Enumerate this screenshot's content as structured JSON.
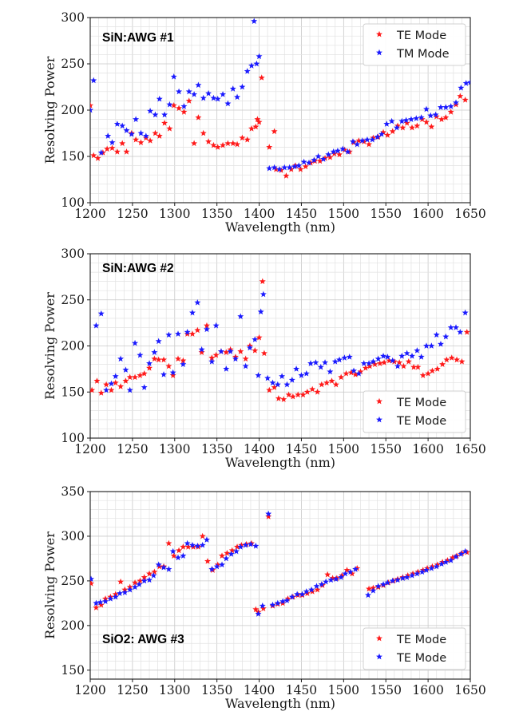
{
  "colors": {
    "red": "#ff1a1a",
    "blue": "#1a1aff"
  },
  "chart_data": [
    {
      "type": "scatter",
      "title": "SiN:AWG #1",
      "xlabel": "Wavelength (nm)",
      "ylabel": "Resolving Power",
      "xlim": [
        1200,
        1650
      ],
      "ylim": [
        100,
        300
      ],
      "xticks": [
        "1200",
        "1250",
        "1300",
        "1350",
        "1400",
        "1450",
        "1500",
        "1550",
        "1600",
        "1650"
      ],
      "yticks": [
        "100",
        "150",
        "200",
        "250",
        "300"
      ],
      "legend_position": "top-right",
      "grid": true,
      "series": [
        {
          "name": "TE Mode",
          "color": "red",
          "x": [
            1200,
            1204,
            1209,
            1215,
            1220,
            1226,
            1232,
            1238,
            1243,
            1249,
            1254,
            1260,
            1266,
            1271,
            1277,
            1282,
            1288,
            1294,
            1299,
            1305,
            1311,
            1317,
            1323,
            1328,
            1334,
            1340,
            1346,
            1351,
            1357,
            1363,
            1369,
            1374,
            1380,
            1386,
            1391,
            1396,
            1398,
            1400,
            1403,
            1412,
            1418,
            1420,
            1426,
            1432,
            1438,
            1443,
            1449,
            1455,
            1461,
            1466,
            1472,
            1478,
            1484,
            1489,
            1495,
            1501,
            1507,
            1512,
            1518,
            1524,
            1530,
            1535,
            1541,
            1547,
            1552,
            1558,
            1564,
            1570,
            1575,
            1581,
            1587,
            1593,
            1598,
            1604,
            1610,
            1616,
            1621,
            1627,
            1633,
            1638,
            1644
          ],
          "y": [
            205,
            151,
            148,
            154,
            158,
            159,
            155,
            164,
            155,
            175,
            168,
            165,
            170,
            167,
            175,
            172,
            186,
            180,
            205,
            202,
            198,
            210,
            164,
            192,
            175,
            166,
            162,
            160,
            162,
            164,
            164,
            163,
            170,
            168,
            180,
            182,
            190,
            187,
            235,
            160,
            177,
            136,
            135,
            129,
            136,
            140,
            136,
            139,
            143,
            145,
            145,
            148,
            149,
            153,
            152,
            157,
            155,
            165,
            167,
            166,
            163,
            170,
            171,
            176,
            173,
            177,
            183,
            181,
            186,
            181,
            183,
            190,
            187,
            182,
            193,
            190,
            192,
            198,
            206,
            215,
            211
          ]
        },
        {
          "name": "TM Mode",
          "color": "blue",
          "x": [
            1200,
            1204,
            1213,
            1221,
            1226,
            1232,
            1238,
            1243,
            1249,
            1254,
            1260,
            1266,
            1271,
            1277,
            1282,
            1288,
            1294,
            1299,
            1305,
            1311,
            1317,
            1323,
            1328,
            1334,
            1340,
            1346,
            1351,
            1357,
            1363,
            1369,
            1374,
            1380,
            1386,
            1391,
            1394,
            1397,
            1400,
            1412,
            1418,
            1424,
            1430,
            1436,
            1442,
            1447,
            1453,
            1459,
            1465,
            1470,
            1476,
            1482,
            1488,
            1493,
            1499,
            1505,
            1511,
            1516,
            1522,
            1528,
            1534,
            1540,
            1545,
            1551,
            1557,
            1563,
            1569,
            1574,
            1580,
            1586,
            1592,
            1598,
            1603,
            1609,
            1615,
            1621,
            1627,
            1633,
            1639,
            1645,
            1650
          ],
          "y": [
            200,
            232,
            154,
            172,
            165,
            185,
            183,
            178,
            174,
            190,
            175,
            172,
            199,
            195,
            212,
            195,
            206,
            236,
            220,
            204,
            220,
            217,
            227,
            213,
            218,
            213,
            212,
            217,
            207,
            223,
            214,
            225,
            242,
            248,
            296,
            250,
            258,
            137,
            138,
            136,
            138,
            138,
            139,
            140,
            144,
            143,
            146,
            150,
            147,
            152,
            155,
            156,
            158,
            155,
            166,
            163,
            167,
            168,
            168,
            171,
            174,
            185,
            188,
            181,
            188,
            189,
            190,
            191,
            192,
            201,
            194,
            195,
            203,
            203,
            204,
            208,
            224,
            229,
            230
          ]
        }
      ],
      "legend": [
        "TE Mode",
        "TM Mode"
      ]
    },
    {
      "type": "scatter",
      "title": "SiN:AWG #2",
      "xlabel": "Wavelength (nm)",
      "ylabel": "Resolving Power",
      "xlim": [
        1200,
        1650
      ],
      "ylim": [
        100,
        300
      ],
      "xticks": [
        "1200",
        "1250",
        "1300",
        "1350",
        "1400",
        "1450",
        "1500",
        "1550",
        "1600",
        "1650"
      ],
      "yticks": [
        "100",
        "150",
        "200",
        "250",
        "300"
      ],
      "legend_position": "lower-right",
      "grid": true,
      "series": [
        {
          "name": "TE Mode",
          "color": "red",
          "x": [
            1202,
            1208,
            1213,
            1219,
            1225,
            1230,
            1236,
            1242,
            1247,
            1253,
            1259,
            1264,
            1270,
            1276,
            1281,
            1287,
            1293,
            1298,
            1304,
            1310,
            1315,
            1321,
            1327,
            1332,
            1338,
            1344,
            1349,
            1355,
            1361,
            1366,
            1372,
            1378,
            1384,
            1389,
            1395,
            1400,
            1404,
            1406,
            1412,
            1418,
            1423,
            1429,
            1435,
            1440,
            1446,
            1452,
            1457,
            1463,
            1469,
            1474,
            1480,
            1486,
            1491,
            1497,
            1503,
            1509,
            1514,
            1520,
            1526,
            1531,
            1537,
            1543,
            1548,
            1554,
            1560,
            1566,
            1571,
            1577,
            1583,
            1588,
            1594,
            1600,
            1605,
            1611,
            1617,
            1622,
            1628,
            1634,
            1640,
            1646
          ],
          "y": [
            152,
            162,
            149,
            158,
            152,
            160,
            156,
            162,
            166,
            166,
            168,
            170,
            176,
            186,
            185,
            185,
            178,
            168,
            186,
            184,
            213,
            213,
            217,
            193,
            222,
            187,
            190,
            194,
            193,
            196,
            188,
            194,
            186,
            200,
            195,
            209,
            270,
            192,
            152,
            155,
            143,
            142,
            147,
            145,
            147,
            147,
            150,
            153,
            150,
            158,
            160,
            162,
            158,
            166,
            170,
            171,
            169,
            172,
            176,
            178,
            180,
            181,
            182,
            184,
            183,
            182,
            178,
            183,
            177,
            177,
            168,
            170,
            173,
            175,
            180,
            185,
            187,
            185,
            183,
            215
          ]
        },
        {
          "name": "TE Mode",
          "color": "blue",
          "x": [
            1207,
            1213,
            1219,
            1225,
            1230,
            1236,
            1242,
            1247,
            1253,
            1259,
            1264,
            1270,
            1276,
            1281,
            1287,
            1293,
            1298,
            1304,
            1310,
            1315,
            1321,
            1327,
            1332,
            1338,
            1344,
            1349,
            1355,
            1361,
            1366,
            1372,
            1378,
            1384,
            1389,
            1395,
            1399,
            1402,
            1405,
            1410,
            1416,
            1422,
            1427,
            1433,
            1439,
            1444,
            1450,
            1456,
            1461,
            1467,
            1473,
            1478,
            1484,
            1490,
            1495,
            1501,
            1507,
            1512,
            1518,
            1524,
            1530,
            1535,
            1541,
            1547,
            1552,
            1558,
            1564,
            1569,
            1575,
            1581,
            1587,
            1592,
            1598,
            1604,
            1610,
            1615,
            1621,
            1627,
            1633,
            1638,
            1644
          ],
          "y": [
            222,
            235,
            152,
            159,
            167,
            186,
            174,
            152,
            203,
            190,
            155,
            181,
            193,
            205,
            169,
            212,
            171,
            213,
            180,
            215,
            236,
            247,
            196,
            218,
            183,
            222,
            194,
            175,
            194,
            186,
            232,
            178,
            198,
            207,
            168,
            237,
            256,
            165,
            160,
            158,
            167,
            158,
            163,
            175,
            168,
            170,
            181,
            182,
            177,
            182,
            172,
            183,
            185,
            187,
            188,
            173,
            170,
            181,
            181,
            183,
            186,
            189,
            188,
            184,
            178,
            189,
            192,
            189,
            195,
            188,
            200,
            200,
            212,
            202,
            210,
            220,
            220,
            215,
            236
          ]
        }
      ],
      "legend": [
        "TE Mode",
        "TE Mode"
      ]
    },
    {
      "type": "scatter",
      "title": "SiO2: AWG #3",
      "xlabel": "Wavelength (nm)",
      "ylabel": "Resolving Power",
      "xlim": [
        1200,
        1650
      ],
      "ylim": [
        140,
        350
      ],
      "xticks": [
        "1200",
        "1250",
        "1300",
        "1350",
        "1400",
        "1450",
        "1500",
        "1550",
        "1600",
        "1650"
      ],
      "yticks": [
        "150",
        "200",
        "250",
        "300",
        "350"
      ],
      "legend_position": "lower-right",
      "grid": true,
      "series": [
        {
          "name": "TE Mode",
          "color": "red",
          "x": [
            1201,
            1207,
            1213,
            1218,
            1224,
            1230,
            1236,
            1241,
            1247,
            1253,
            1259,
            1264,
            1270,
            1276,
            1282,
            1287,
            1293,
            1299,
            1305,
            1310,
            1316,
            1322,
            1328,
            1333,
            1339,
            1345,
            1351,
            1356,
            1362,
            1368,
            1374,
            1379,
            1385,
            1391,
            1396,
            1399,
            1405,
            1411,
            1416,
            1422,
            1428,
            1434,
            1440,
            1446,
            1451,
            1457,
            1463,
            1469,
            1475,
            1481,
            1487,
            1492,
            1498,
            1504,
            1510,
            1516,
            1530,
            1535,
            1541,
            1547,
            1553,
            1559,
            1564,
            1570,
            1576,
            1582,
            1588,
            1594,
            1599,
            1605,
            1611,
            1617,
            1623,
            1629,
            1634,
            1640,
            1646
          ],
          "y": [
            247,
            220,
            223,
            230,
            232,
            235,
            249,
            240,
            243,
            248,
            250,
            254,
            258,
            260,
            266,
            266,
            292,
            278,
            284,
            288,
            288,
            288,
            288,
            300,
            272,
            262,
            268,
            278,
            281,
            284,
            288,
            290,
            291,
            292,
            218,
            215,
            219,
            322,
            222,
            224,
            225,
            230,
            232,
            234,
            234,
            236,
            238,
            240,
            245,
            257,
            253,
            253,
            256,
            262,
            258,
            264,
            241,
            242,
            243,
            245,
            248,
            250,
            252,
            254,
            256,
            258,
            260,
            262,
            264,
            266,
            268,
            271,
            273,
            276,
            278,
            281,
            282
          ]
        },
        {
          "name": "TE Mode",
          "color": "blue",
          "x": [
            1201,
            1207,
            1212,
            1218,
            1224,
            1230,
            1235,
            1241,
            1247,
            1253,
            1258,
            1264,
            1270,
            1275,
            1281,
            1287,
            1293,
            1298,
            1304,
            1310,
            1315,
            1321,
            1327,
            1333,
            1338,
            1344,
            1350,
            1356,
            1361,
            1367,
            1373,
            1378,
            1384,
            1390,
            1396,
            1399,
            1404,
            1411,
            1416,
            1422,
            1428,
            1433,
            1439,
            1445,
            1451,
            1456,
            1462,
            1468,
            1474,
            1479,
            1485,
            1491,
            1497,
            1502,
            1508,
            1514,
            1529,
            1535,
            1541,
            1547,
            1552,
            1558,
            1564,
            1570,
            1575,
            1581,
            1587,
            1593,
            1598,
            1604,
            1610,
            1616,
            1621,
            1627,
            1633,
            1639,
            1644
          ],
          "y": [
            252,
            225,
            226,
            227,
            230,
            232,
            236,
            237,
            240,
            243,
            246,
            250,
            251,
            256,
            268,
            265,
            263,
            283,
            276,
            278,
            292,
            290,
            289,
            290,
            296,
            263,
            266,
            268,
            275,
            280,
            283,
            288,
            290,
            291,
            289,
            213,
            222,
            325,
            223,
            225,
            227,
            228,
            232,
            235,
            235,
            238,
            240,
            244,
            246,
            249,
            251,
            252,
            254,
            258,
            260,
            263,
            234,
            239,
            244,
            246,
            248,
            250,
            251,
            253,
            254,
            256,
            258,
            260,
            262,
            264,
            266,
            269,
            271,
            273,
            277,
            280,
            283
          ]
        }
      ],
      "legend": [
        "TE Mode",
        "TE Mode"
      ]
    }
  ]
}
